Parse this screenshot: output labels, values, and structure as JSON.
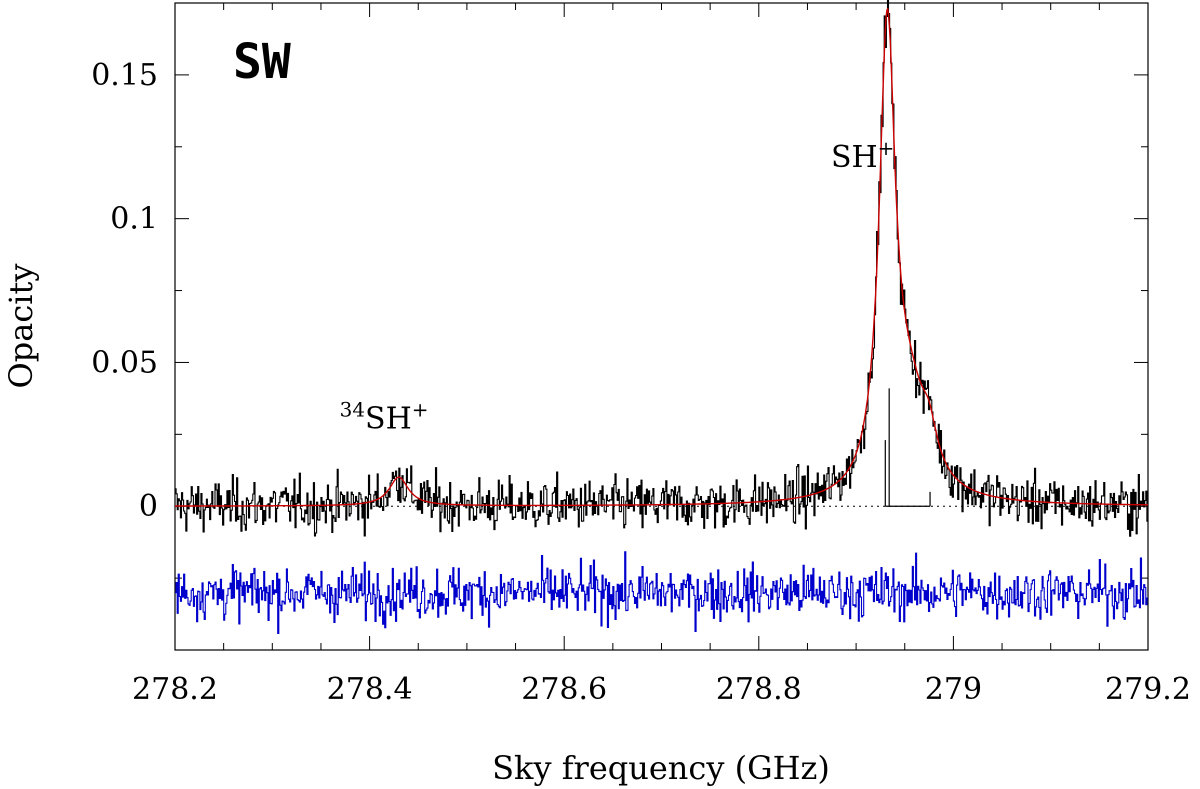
{
  "chart_data": {
    "type": "line",
    "panel_label": "SW",
    "xlabel": "Sky frequency (GHz)",
    "ylabel": "Opacity",
    "xlim": [
      278.2,
      279.2
    ],
    "ylim": [
      -0.05,
      0.175
    ],
    "x_ticks": [
      278.2,
      278.4,
      278.6,
      278.8,
      279.0,
      279.2
    ],
    "x_tick_labels": [
      "278.2",
      "278.4",
      "278.6",
      "278.8",
      "279",
      "279.2"
    ],
    "y_ticks": [
      0,
      0.05,
      0.1,
      0.15
    ],
    "y_tick_labels": [
      "0",
      "0.05",
      "0.1",
      "0.15"
    ],
    "baseline_y": 0,
    "series": [
      {
        "name": "observed spectrum",
        "color": "#000000",
        "style": "histogram",
        "noise_rms": 0.0045,
        "peaks": [
          {
            "center": 278.932,
            "amplitude": 0.165
          },
          {
            "center": 278.975,
            "amplitude": 0.018
          },
          {
            "center": 278.43,
            "amplitude": 0.014
          }
        ]
      },
      {
        "name": "fit",
        "color": "#cc0000",
        "components": [
          {
            "center": 278.932,
            "amplitude": 0.158,
            "width": 0.01
          },
          {
            "center": 278.955,
            "amplitude": 0.03,
            "width": 0.022
          },
          {
            "center": 278.975,
            "amplitude": 0.012,
            "width": 0.01
          },
          {
            "center": 278.43,
            "amplitude": 0.01,
            "width": 0.012
          }
        ]
      },
      {
        "name": "residuals (offset)",
        "color": "#0000cc",
        "style": "histogram",
        "offset": -0.03,
        "noise_rms": 0.0045
      }
    ],
    "hyperfine_components": [
      {
        "freq": 278.93,
        "height": 0.023
      },
      {
        "freq": 278.934,
        "height": 0.041
      },
      {
        "freq": 278.976,
        "height": 0.005
      }
    ],
    "annotations": [
      {
        "text": "SH",
        "sup": "+",
        "pre_sup": "",
        "x": 278.905,
        "y": 0.118
      },
      {
        "text": "SH",
        "sup": "+",
        "pre_sup": "34",
        "x": 278.4,
        "y": 0.027
      }
    ]
  }
}
